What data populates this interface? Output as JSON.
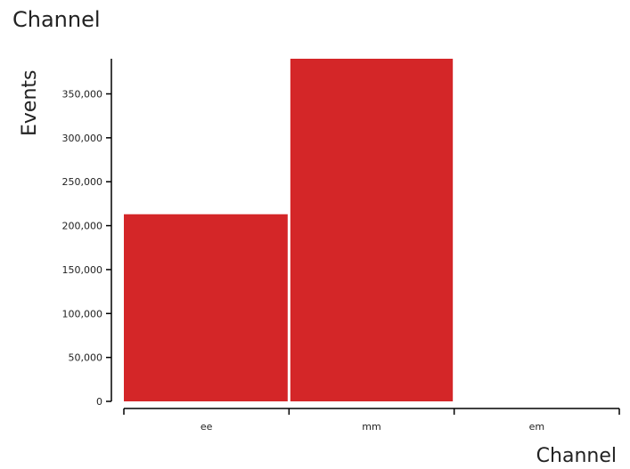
{
  "colors": {
    "bar": "#d42628",
    "axis": "#000000",
    "text": "#222222"
  },
  "chart_data": {
    "type": "bar",
    "title": "Channel",
    "xlabel": "Channel",
    "ylabel": "Events",
    "categories": [
      "ee",
      "mm",
      "em"
    ],
    "values": [
      213000,
      390000,
      0
    ],
    "ylim": [
      0,
      390000
    ],
    "yticks": [
      0,
      50000,
      100000,
      150000,
      200000,
      250000,
      300000,
      350000
    ],
    "ytick_labels": [
      "0",
      "50,000",
      "100,000",
      "150,000",
      "200,000",
      "250,000",
      "300,000",
      "350,000"
    ],
    "grid": false,
    "legend": "none"
  }
}
